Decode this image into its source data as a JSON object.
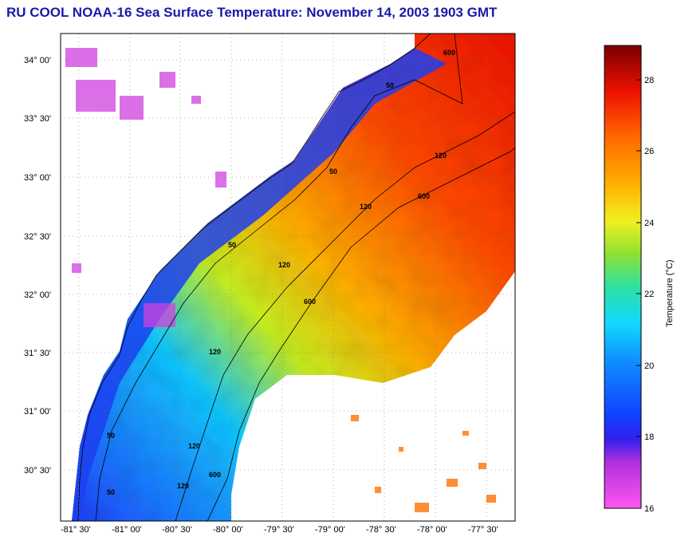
{
  "title": "RU COOL  NOAA-16  Sea Surface Temperature:  November 14, 2003 1903 GMT",
  "map": {
    "lat_labels": [
      "34° 00'",
      "33° 30'",
      "33° 00'",
      "32° 30'",
      "32° 00'",
      "31° 30'",
      "31° 00'",
      "30° 30'"
    ],
    "lon_labels": [
      "-81° 30'",
      "-81° 00'",
      "-80° 30'",
      "-80° 00'",
      "-79° 30'",
      "-79° 00'",
      "-78° 30'",
      "-78° 00'",
      "-77° 30'"
    ],
    "isobath_labels": [
      "50",
      "50",
      "50",
      "50",
      "50",
      "120",
      "120",
      "120",
      "120",
      "120",
      "120",
      "600",
      "600",
      "600",
      "600"
    ]
  },
  "colorbar": {
    "label": "Temperature (°C)",
    "ticks": [
      "28",
      "26",
      "24",
      "22",
      "20",
      "18",
      "16"
    ],
    "range": [
      16,
      29
    ],
    "colors": [
      "#ff55ee",
      "#9922dd",
      "#1030ee",
      "#1077ff",
      "#11cfff",
      "#22e0c0",
      "#7be030",
      "#f2f020",
      "#ffb000",
      "#ff6a00",
      "#ee1000",
      "#7a0000"
    ]
  }
}
